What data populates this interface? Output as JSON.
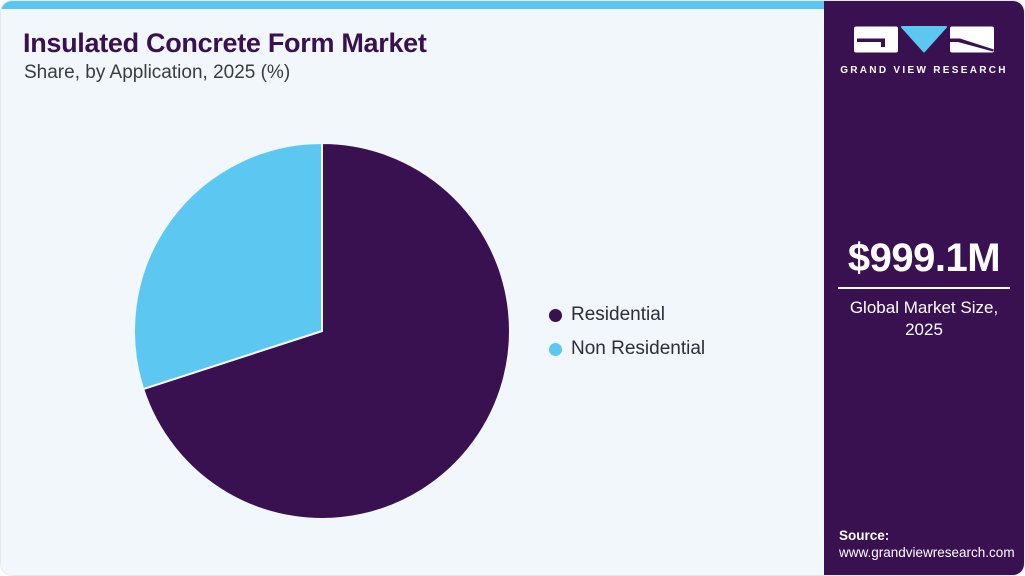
{
  "header": {
    "title": "Insulated Concrete Form Market",
    "subtitle": "Share, by Application, 2025 (%)"
  },
  "chart_data": {
    "type": "pie",
    "title": "Insulated Concrete Form Market Share, by Application, 2025 (%)",
    "categories": [
      "Residential",
      "Non Residential"
    ],
    "values": [
      70,
      30
    ],
    "unit": "%",
    "colors": [
      "#3A1150",
      "#5CC8F2"
    ],
    "start_angle_deg": 0,
    "direction": "clockwise",
    "slice_labels_shown": false,
    "legend_position": "right"
  },
  "sidebar": {
    "brand": {
      "wordmark": "GRAND VIEW RESEARCH"
    },
    "stat": {
      "value": "$999.1M",
      "label": "Global Market Size, 2025"
    },
    "source": {
      "label": "Source:",
      "url": "www.grandviewresearch.com"
    }
  },
  "colors": {
    "accent_blue": "#5CC6F2",
    "brand_purple": "#3A1150",
    "panel_bg": "#F1F7FA",
    "title_purple": "#3A1053"
  }
}
